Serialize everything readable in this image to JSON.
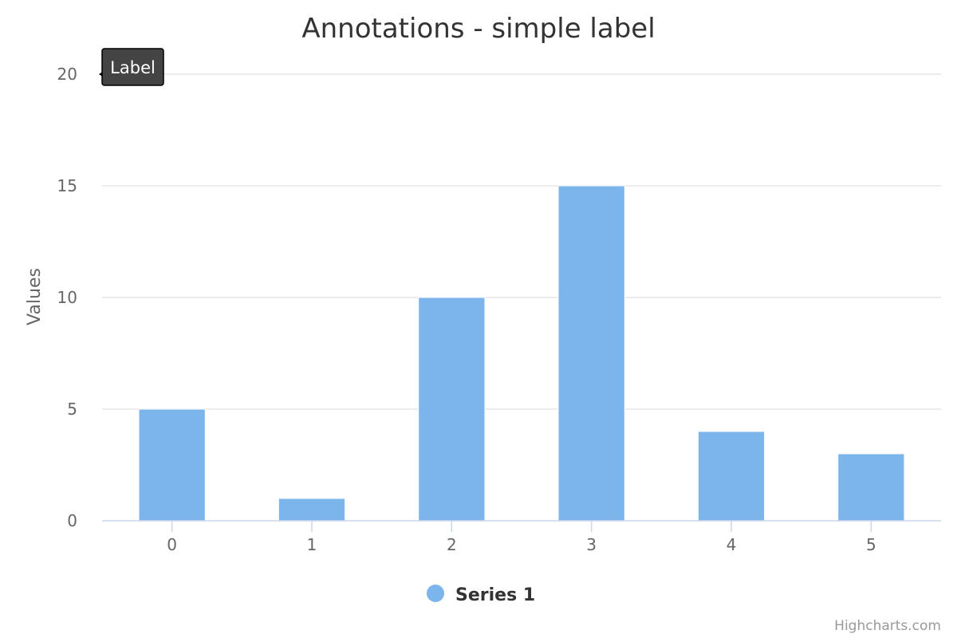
{
  "chart_data": {
    "type": "bar",
    "title": "Annotations - simple label",
    "ylabel": "Values",
    "xlabel": "",
    "categories": [
      "0",
      "1",
      "2",
      "3",
      "4",
      "5"
    ],
    "series": [
      {
        "name": "Series 1",
        "values": [
          5,
          1,
          10,
          15,
          4,
          3
        ],
        "color": "#7cb5ec"
      }
    ],
    "ylim": [
      0,
      20
    ],
    "yticks": [
      0,
      5,
      10,
      15,
      20
    ],
    "grid": true,
    "legend": "bottom-center",
    "annotation": {
      "text": "Label",
      "x": 0,
      "y": 20
    }
  },
  "credits": "Highcharts.com",
  "colors": {
    "bar": "#7cb5ec",
    "grid": "#e6e6e6",
    "axis": "#ccd6eb",
    "annotation_bg": "#444444"
  }
}
